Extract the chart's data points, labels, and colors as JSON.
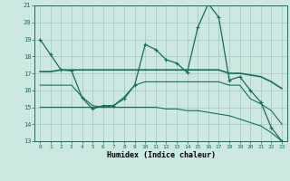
{
  "title": "",
  "xlabel": "Humidex (Indice chaleur)",
  "ylabel": "",
  "bg_color": "#cde8e0",
  "grid_color": "#a0c8be",
  "line_color": "#1a6b5a",
  "xlim": [
    -0.5,
    23.5
  ],
  "ylim": [
    13,
    21
  ],
  "yticks": [
    13,
    14,
    15,
    16,
    17,
    18,
    19,
    20,
    21
  ],
  "xticks": [
    0,
    1,
    2,
    3,
    4,
    5,
    6,
    7,
    8,
    9,
    10,
    11,
    12,
    13,
    14,
    15,
    16,
    17,
    18,
    19,
    20,
    21,
    22,
    23
  ],
  "series1_x": [
    0,
    1,
    2,
    3,
    4,
    5,
    6,
    7,
    8,
    9,
    10,
    11,
    12,
    13,
    14,
    15,
    16,
    17,
    18,
    19,
    20,
    21,
    22,
    23
  ],
  "series1_y": [
    19.0,
    18.1,
    17.2,
    17.15,
    15.55,
    14.9,
    15.1,
    15.1,
    15.5,
    16.3,
    18.7,
    18.4,
    17.8,
    17.6,
    17.05,
    19.7,
    21.1,
    20.3,
    16.6,
    16.8,
    16.0,
    15.3,
    13.8,
    13.0
  ],
  "series2_x": [
    0,
    1,
    2,
    3,
    4,
    5,
    6,
    7,
    8,
    9,
    10,
    11,
    12,
    13,
    14,
    15,
    16,
    17,
    18,
    19,
    20,
    21,
    22,
    23
  ],
  "series2_y": [
    17.1,
    17.1,
    17.2,
    17.2,
    17.2,
    17.2,
    17.2,
    17.2,
    17.2,
    17.2,
    17.2,
    17.2,
    17.2,
    17.2,
    17.2,
    17.2,
    17.2,
    17.2,
    17.0,
    17.0,
    16.9,
    16.8,
    16.5,
    16.1
  ],
  "series3_x": [
    0,
    1,
    2,
    3,
    4,
    5,
    6,
    7,
    8,
    9,
    10,
    11,
    12,
    13,
    14,
    15,
    16,
    17,
    18,
    19,
    20,
    21,
    22,
    23
  ],
  "series3_y": [
    16.3,
    16.3,
    16.3,
    16.3,
    15.6,
    15.1,
    15.0,
    15.1,
    15.6,
    16.3,
    16.5,
    16.5,
    16.5,
    16.5,
    16.5,
    16.5,
    16.5,
    16.5,
    16.3,
    16.3,
    15.5,
    15.2,
    14.8,
    14.0
  ],
  "series4_x": [
    0,
    1,
    2,
    3,
    4,
    5,
    6,
    7,
    8,
    9,
    10,
    11,
    12,
    13,
    14,
    15,
    16,
    17,
    18,
    19,
    20,
    21,
    22,
    23
  ],
  "series4_y": [
    15.0,
    15.0,
    15.0,
    15.0,
    15.0,
    15.0,
    15.0,
    15.0,
    15.0,
    15.0,
    15.0,
    15.0,
    14.9,
    14.9,
    14.8,
    14.8,
    14.7,
    14.6,
    14.5,
    14.3,
    14.1,
    13.9,
    13.5,
    13.0
  ]
}
